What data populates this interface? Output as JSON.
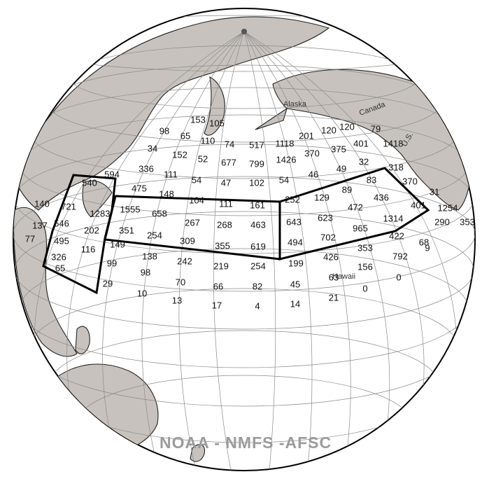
{
  "map": {
    "credit": "NOAA - NMFS -AFSC",
    "labels": {
      "alaska": "Alaska",
      "canada": "Canada",
      "us": "U.S.",
      "hawaii": "Hawaii"
    },
    "colors": {
      "land": "#c7c2bd",
      "ocean": "#ffffff",
      "outline": "#000000"
    },
    "cells": [
      "153",
      "105",
      "98",
      "65",
      "110",
      "74",
      "517",
      "1118",
      "201",
      "120",
      "120",
      "79",
      "34",
      "152",
      "52",
      "677",
      "799",
      "1426",
      "370",
      "375",
      "401",
      "1418",
      "336",
      "111",
      "54",
      "47",
      "102",
      "54",
      "46",
      "49",
      "32",
      "318",
      "594",
      "475",
      "148",
      "104",
      "111",
      "161",
      "252",
      "129",
      "89",
      "83",
      "370",
      "31",
      "540",
      "721",
      "1555",
      "658",
      "267",
      "268",
      "463",
      "643",
      "623",
      "472",
      "436",
      "1314",
      "401",
      "1254",
      "140",
      "546",
      "1283",
      "351",
      "254",
      "309",
      "355",
      "619",
      "494",
      "702",
      "965",
      "290",
      "353",
      "137",
      "495",
      "202",
      "149",
      "138",
      "242",
      "219",
      "254",
      "199",
      "426",
      "353",
      "422",
      "68",
      "77",
      "326",
      "116",
      "99",
      "98",
      "70",
      "66",
      "82",
      "45",
      "63",
      "156",
      "792",
      "9",
      "65",
      "29",
      "10",
      "13",
      "17",
      "4",
      "14",
      "21",
      "0",
      "0"
    ]
  }
}
